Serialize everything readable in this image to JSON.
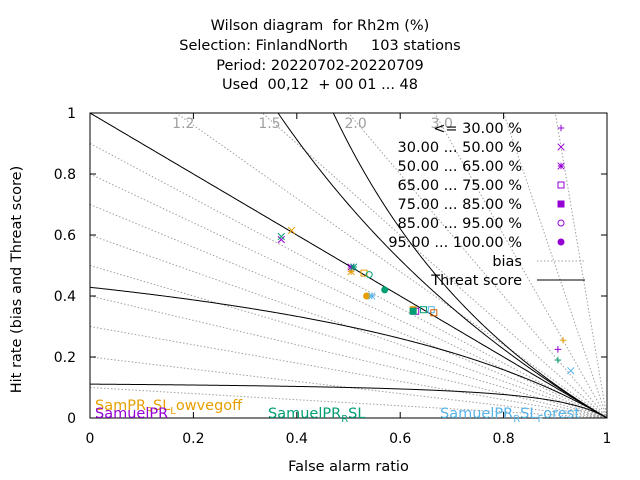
{
  "chart_data": {
    "type": "scatter",
    "title": [
      "Wilson diagram  for Rh2m (%)",
      "Selection: FinlandNorth     103 stations",
      "Period: 20220702-20220709",
      "Used  00,12  + 00 01 ... 48"
    ],
    "xlabel": "False alarm ratio",
    "ylabel": "Hit rate (bias and Threat score)",
    "xlim": [
      0,
      1
    ],
    "ylim": [
      0,
      1
    ],
    "x_ticks": [
      "0",
      "0.2",
      "0.4",
      "0.6",
      "0.8",
      "1"
    ],
    "y_ticks": [
      "0",
      "0.2",
      "0.4",
      "0.6",
      "0.8",
      "1"
    ],
    "grid": false,
    "legend_position": "top-right",
    "bias_labels": [
      {
        "text": "1.2",
        "value": 1.2
      },
      {
        "text": "1.5",
        "value": 1.5
      },
      {
        "text": "2.0",
        "value": 2.0
      },
      {
        "text": "3.0",
        "value": 3.0
      }
    ],
    "threat_score_curves": [
      0.1,
      0.3,
      0.5,
      0.7,
      0.9
    ],
    "bias_lines": [
      0.1,
      0.2,
      0.3,
      0.4,
      0.5,
      0.6,
      0.7,
      0.8,
      0.9,
      1.0,
      1.2,
      1.5,
      2.0,
      3.0,
      5.0,
      10.0
    ],
    "legend": [
      {
        "label": "<= 30.00 %",
        "marker": "+",
        "color": "#9400d3"
      },
      {
        "label": "30.00 ... 50.00 %",
        "marker": "x",
        "color": "#9400d3"
      },
      {
        "label": "50.00 ... 65.00 %",
        "marker": "*",
        "color": "#9400d3"
      },
      {
        "label": "65.00 ... 75.00 %",
        "marker": "square",
        "color": "#9400d3"
      },
      {
        "label": "75.00 ... 85.00 %",
        "marker": "filled-square",
        "color": "#9400d3"
      },
      {
        "label": "85.00 ... 95.00 %",
        "marker": "circle",
        "color": "#9400d3"
      },
      {
        "label": "95.00 ... 100.00 %",
        "marker": "filled-circle",
        "color": "#9400d3"
      },
      {
        "label": "bias",
        "marker": "dotted-line",
        "color": "#a0a0a0"
      },
      {
        "label": "Threat score",
        "marker": "line",
        "color": "#000000"
      }
    ],
    "series": [
      {
        "name": "SamPR_RSL_Lowvegoff",
        "color": "#e69f00",
        "points": [
          {
            "x": 0.39,
            "y": 0.615,
            "m": "x"
          },
          {
            "x": 0.505,
            "y": 0.48,
            "m": "*"
          },
          {
            "x": 0.53,
            "y": 0.475,
            "m": "square"
          },
          {
            "x": 0.535,
            "y": 0.4,
            "m": "filled-circle"
          },
          {
            "x": 0.625,
            "y": 0.355,
            "m": "filled-square"
          },
          {
            "x": 0.915,
            "y": 0.255,
            "m": "+"
          }
        ]
      },
      {
        "name": "SamuelPR",
        "color": "#9400d3",
        "points": [
          {
            "x": 0.37,
            "y": 0.585,
            "m": "x"
          },
          {
            "x": 0.505,
            "y": 0.495,
            "m": "*"
          },
          {
            "x": 0.63,
            "y": 0.35,
            "m": "square"
          },
          {
            "x": 0.905,
            "y": 0.225,
            "m": "+"
          }
        ]
      },
      {
        "name": "SamuelPR_RSL",
        "color": "#009e73",
        "points": [
          {
            "x": 0.37,
            "y": 0.595,
            "m": "x"
          },
          {
            "x": 0.51,
            "y": 0.495,
            "m": "*"
          },
          {
            "x": 0.54,
            "y": 0.47,
            "m": "circle"
          },
          {
            "x": 0.57,
            "y": 0.42,
            "m": "filled-circle"
          },
          {
            "x": 0.625,
            "y": 0.35,
            "m": "filled-square"
          },
          {
            "x": 0.645,
            "y": 0.355,
            "m": "square"
          },
          {
            "x": 0.905,
            "y": 0.19,
            "m": "+"
          }
        ]
      },
      {
        "name": "SamuelPR_RSL_Forest",
        "color": "#56b4e9",
        "points": [
          {
            "x": 0.545,
            "y": 0.4,
            "m": "*"
          },
          {
            "x": 0.66,
            "y": 0.355,
            "m": "square"
          },
          {
            "x": 0.93,
            "y": 0.155,
            "m": "x"
          }
        ]
      }
    ],
    "series_labels": [
      {
        "text_main": "SamPR",
        "sub": "R",
        "text_rest": "SL",
        "sub2": "L",
        "text_end": "owvegoff",
        "color": "#e69f00"
      },
      {
        "text_main": "SamuelPR",
        "sub": "",
        "text_rest": "",
        "sub2": "",
        "text_end": "",
        "color": "#9400d3"
      },
      {
        "text_main": "SamuelPR",
        "sub": "R",
        "text_rest": "SL",
        "sub2": "",
        "text_end": "",
        "color": "#009e73"
      },
      {
        "text_main": "SamuelPR",
        "sub": "R",
        "text_rest": "SL",
        "sub2": "F",
        "text_end": "orest",
        "color": "#56b4e9"
      }
    ],
    "extra_marker": {
      "x": 0.665,
      "y": 0.345,
      "m": "square",
      "color": "#d55e00"
    }
  }
}
